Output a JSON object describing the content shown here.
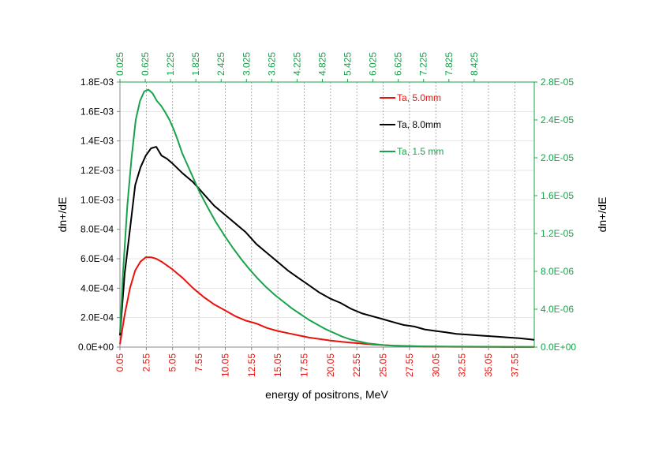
{
  "chart_data": {
    "type": "line",
    "xlabel": "energy of positrons, MeV",
    "ylabel_left": "dn+/dE",
    "ylabel_right": "dn+/dE",
    "grid": "vertical dotted gridlines at bottom-axis ticks, faint horizontal gridlines",
    "legend_position": "top-right inside plot",
    "x_bottom": {
      "color": "#e8120c",
      "range": [
        0.05,
        39.4
      ],
      "ticks": [
        "0.05",
        "2.55",
        "5.05",
        "7.55",
        "10.05",
        "12.55",
        "15.05",
        "17.55",
        "20.05",
        "22.55",
        "25.05",
        "27.55",
        "30.05",
        "32.55",
        "35.05",
        "37.55"
      ]
    },
    "x_top": {
      "color": "#17a34a",
      "range": [
        0.025,
        9.85
      ],
      "ticks": [
        "0.025",
        "0.625",
        "1.225",
        "1.825",
        "2.425",
        "3.025",
        "3.625",
        "4.225",
        "4.825",
        "5.425",
        "6.025",
        "6.625",
        "7.225",
        "7.825",
        "8.425"
      ]
    },
    "y_left": {
      "range": [
        0,
        0.0018
      ],
      "ticks": [
        "0.0E+00",
        "2.0E-04",
        "4.0E-04",
        "6.0E-04",
        "8.0E-04",
        "1.0E-03",
        "1.2E-03",
        "1.4E-03",
        "1.6E-03",
        "1.8E-03"
      ]
    },
    "y_right": {
      "color": "#17a34a",
      "range": [
        0,
        2.8e-05
      ],
      "ticks": [
        "0.0E+00",
        "4.0E-06",
        "8.0E-06",
        "1.2E-05",
        "1.6E-05",
        "2.0E-05",
        "2.4E-05",
        "2.8E-05"
      ]
    },
    "series": [
      {
        "name": "Ta, 5.0mm",
        "color": "#e8120c",
        "axis": "bottom-left",
        "x": [
          0.05,
          0.5,
          1.0,
          1.5,
          2.0,
          2.5,
          3.0,
          3.5,
          4.0,
          5.0,
          6.0,
          7.0,
          8.0,
          9.0,
          10.0,
          11.0,
          12.0,
          13.0,
          14.0,
          15.0,
          16.0,
          17.0,
          18.0,
          19.0,
          20.0,
          21.0,
          22.0,
          23.0,
          24.0,
          25.0,
          26.0,
          27.0,
          28.0,
          29.0,
          30.0,
          32.0,
          34.0,
          36.0,
          38.0,
          39.4
        ],
        "y": [
          2e-05,
          0.00022,
          0.0004,
          0.00052,
          0.00058,
          0.00061,
          0.00061,
          0.0006,
          0.00058,
          0.00053,
          0.00047,
          0.0004,
          0.00034,
          0.00029,
          0.00025,
          0.00021,
          0.00018,
          0.00016,
          0.00013,
          0.00011,
          9.5e-05,
          8e-05,
          6.5e-05,
          5.5e-05,
          4.5e-05,
          3.7e-05,
          3e-05,
          2.4e-05,
          1.8e-05,
          1.4e-05,
          1e-05,
          8e-06,
          6e-06,
          4e-06,
          3e-06,
          2e-06,
          1e-06,
          1e-06,
          5e-07,
          5e-07
        ]
      },
      {
        "name": "Ta, 8.0mm",
        "color": "#000000",
        "axis": "bottom-left",
        "x": [
          0.05,
          0.5,
          1.0,
          1.5,
          2.0,
          2.5,
          3.0,
          3.5,
          4.0,
          4.5,
          5.0,
          6.0,
          7.0,
          8.0,
          9.0,
          10.0,
          11.0,
          12.0,
          13.0,
          14.0,
          15.0,
          16.0,
          17.0,
          18.0,
          19.0,
          20.0,
          21.0,
          22.0,
          23.0,
          24.0,
          25.0,
          26.0,
          27.0,
          28.0,
          29.0,
          30.0,
          31.0,
          32.0,
          33.0,
          34.0,
          35.0,
          36.0,
          37.0,
          38.0,
          39.4
        ],
        "y": [
          8e-05,
          0.0005,
          0.0008,
          0.0011,
          0.00122,
          0.0013,
          0.00135,
          0.00136,
          0.0013,
          0.00128,
          0.00125,
          0.00118,
          0.00112,
          0.00104,
          0.00096,
          0.0009,
          0.00084,
          0.00078,
          0.0007,
          0.00064,
          0.00058,
          0.00052,
          0.00047,
          0.00042,
          0.00037,
          0.00033,
          0.0003,
          0.00026,
          0.00023,
          0.00021,
          0.00019,
          0.00017,
          0.00015,
          0.00014,
          0.00012,
          0.00011,
          0.0001,
          9e-05,
          8.5e-05,
          8e-05,
          7.5e-05,
          7e-05,
          6.5e-05,
          6e-05,
          5e-05
        ]
      },
      {
        "name": "Ta, 1.5 mm",
        "color": "#17a34a",
        "axis": "top-right",
        "x": [
          0.025,
          0.1,
          0.2,
          0.3,
          0.4,
          0.5,
          0.6,
          0.7,
          0.8,
          0.9,
          1.0,
          1.1,
          1.2,
          1.3,
          1.4,
          1.5,
          1.7,
          1.9,
          2.1,
          2.3,
          2.5,
          2.7,
          2.9,
          3.1,
          3.3,
          3.5,
          3.7,
          3.9,
          4.1,
          4.3,
          4.5,
          4.7,
          4.9,
          5.1,
          5.3,
          5.5,
          5.7,
          5.9,
          6.1,
          6.3,
          6.5,
          6.8,
          7.2,
          7.6,
          8.0,
          8.5,
          9.0,
          9.85
        ],
        "y": [
          1.5e-06,
          8e-06,
          1.5e-05,
          2e-05,
          2.4e-05,
          2.6e-05,
          2.7e-05,
          2.72e-05,
          2.68e-05,
          2.6e-05,
          2.55e-05,
          2.48e-05,
          2.4e-05,
          2.3e-05,
          2.18e-05,
          2.05e-05,
          1.85e-05,
          1.65e-05,
          1.48e-05,
          1.32e-05,
          1.18e-05,
          1.05e-05,
          9.3e-06,
          8.2e-06,
          7.2e-06,
          6.3e-06,
          5.5e-06,
          4.8e-06,
          4.1e-06,
          3.5e-06,
          2.9e-06,
          2.4e-06,
          1.9e-06,
          1.5e-06,
          1.1e-06,
          8e-07,
          6e-07,
          4e-07,
          3e-07,
          2e-07,
          1.5e-07,
          1e-07,
          8e-08,
          6e-08,
          5e-08,
          4e-08,
          3e-08,
          2e-08
        ]
      }
    ]
  }
}
